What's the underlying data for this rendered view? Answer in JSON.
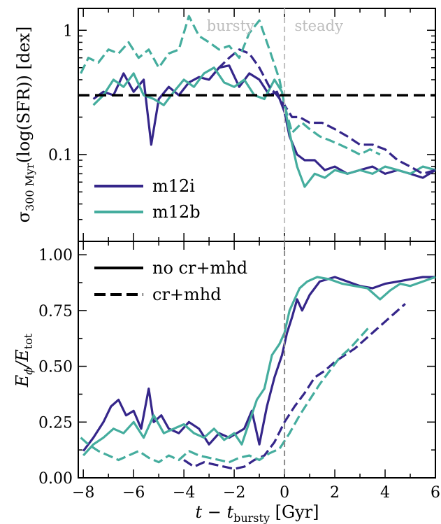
{
  "colors": {
    "m12i": "#35268a",
    "m12b": "#45ad9e",
    "threshold": "#000000",
    "divider_top": "#bfbfbf",
    "divider_bottom": "#8a8a8a"
  },
  "chart_data": [
    {
      "panel": "top",
      "type": "line",
      "ylabel_main": "σ",
      "ylabel_sub": "300 Myr",
      "ylabel_rest": "(log(SFR)) [dex]",
      "yscale": "log",
      "ylim": [
        0.02,
        1.5
      ],
      "xlim": [
        -8.2,
        6.0
      ],
      "yticks": [
        {
          "value": 0.1,
          "label": "0.1"
        },
        {
          "value": 1,
          "label": "1"
        }
      ],
      "annotations": [
        {
          "text": "bursty",
          "x": -1.2,
          "y": 1.1
        },
        {
          "text": "steady",
          "x": 0.4,
          "y": 1.1
        }
      ],
      "hline": 0.3,
      "vline": 0,
      "legend": [
        {
          "label": "m12i",
          "color_key": "m12i"
        },
        {
          "label": "m12b",
          "color_key": "m12b"
        }
      ],
      "series": [
        {
          "name": "m12i",
          "style": "solid",
          "x": [
            -7.6,
            -7.2,
            -6.8,
            -6.4,
            -6.0,
            -5.6,
            -5.3,
            -5.0,
            -4.6,
            -4.2,
            -3.8,
            -3.4,
            -3.0,
            -2.6,
            -2.2,
            -1.8,
            -1.4,
            -1.0,
            -0.6,
            -0.3,
            0.0,
            0.2,
            0.5,
            0.8,
            1.2,
            1.6,
            2.0,
            2.5,
            3.0,
            3.5,
            4.0,
            4.5,
            5.0,
            5.5,
            6.0
          ],
          "y": [
            0.28,
            0.32,
            0.3,
            0.45,
            0.32,
            0.4,
            0.12,
            0.28,
            0.35,
            0.3,
            0.38,
            0.42,
            0.4,
            0.5,
            0.52,
            0.35,
            0.45,
            0.4,
            0.3,
            0.32,
            0.22,
            0.14,
            0.1,
            0.09,
            0.09,
            0.075,
            0.08,
            0.07,
            0.075,
            0.08,
            0.07,
            0.075,
            0.07,
            0.065,
            0.075
          ]
        },
        {
          "name": "m12b",
          "style": "solid",
          "x": [
            -7.6,
            -7.2,
            -6.8,
            -6.4,
            -6.0,
            -5.6,
            -5.2,
            -4.8,
            -4.4,
            -4.0,
            -3.6,
            -3.2,
            -2.8,
            -2.4,
            -2.0,
            -1.6,
            -1.2,
            -0.8,
            -0.4,
            -0.1,
            0.2,
            0.5,
            0.8,
            1.2,
            1.6,
            2.0,
            2.5,
            3.0,
            3.5,
            4.0,
            4.5,
            5.0,
            5.5,
            6.0
          ],
          "y": [
            0.25,
            0.3,
            0.4,
            0.35,
            0.45,
            0.3,
            0.28,
            0.25,
            0.32,
            0.4,
            0.35,
            0.45,
            0.5,
            0.38,
            0.35,
            0.4,
            0.3,
            0.28,
            0.4,
            0.32,
            0.15,
            0.08,
            0.055,
            0.07,
            0.065,
            0.075,
            0.07,
            0.075,
            0.07,
            0.08,
            0.075,
            0.07,
            0.08,
            0.075
          ]
        },
        {
          "name": "m12i",
          "style": "dashed",
          "x": [
            -3.0,
            -2.6,
            -2.2,
            -1.8,
            -1.4,
            -1.0,
            -0.6,
            -0.3,
            0.0,
            0.3,
            0.6,
            1.0,
            1.5,
            2.0,
            2.5,
            3.0,
            3.5,
            4.0,
            4.5,
            5.0,
            5.5,
            6.0
          ],
          "y": [
            0.4,
            0.5,
            0.6,
            0.7,
            0.65,
            0.5,
            0.35,
            0.3,
            0.25,
            0.2,
            0.2,
            0.18,
            0.18,
            0.16,
            0.14,
            0.12,
            0.12,
            0.11,
            0.09,
            0.08,
            0.07,
            0.075
          ]
        },
        {
          "name": "m12b",
          "style": "dashed",
          "x": [
            -8.1,
            -7.8,
            -7.4,
            -7.0,
            -6.6,
            -6.2,
            -5.8,
            -5.4,
            -5.0,
            -4.6,
            -4.2,
            -3.8,
            -3.4,
            -3.0,
            -2.6,
            -2.2,
            -1.8,
            -1.4,
            -1.0,
            -0.6,
            -0.2,
            0.0,
            0.3,
            0.7,
            1.0,
            1.4,
            1.8,
            2.2,
            2.6,
            3.0,
            3.4,
            3.8
          ],
          "y": [
            0.45,
            0.6,
            0.55,
            0.7,
            0.65,
            0.8,
            0.6,
            0.7,
            0.5,
            0.65,
            0.7,
            1.3,
            0.9,
            0.8,
            0.7,
            0.75,
            0.6,
            0.95,
            1.2,
            0.7,
            0.4,
            0.25,
            0.15,
            0.18,
            0.16,
            0.14,
            0.13,
            0.12,
            0.11,
            0.1,
            0.11,
            0.1
          ]
        }
      ]
    },
    {
      "panel": "bottom",
      "type": "line",
      "ylabel_main": "E",
      "ylabel_sub1": "ϕ",
      "ylabel_mid": "/E",
      "ylabel_sub2": "tot",
      "ylim": [
        0,
        1.06
      ],
      "xlim": [
        -8.2,
        6.0
      ],
      "yticks": [
        {
          "value": 0.0,
          "label": "0.00"
        },
        {
          "value": 0.25,
          "label": "0.25"
        },
        {
          "value": 0.5,
          "label": "0.50"
        },
        {
          "value": 0.75,
          "label": "0.75"
        },
        {
          "value": 1.0,
          "label": "1.00"
        }
      ],
      "xticks": [
        {
          "value": -8,
          "label": "−8"
        },
        {
          "value": -6,
          "label": "−6"
        },
        {
          "value": -4,
          "label": "−4"
        },
        {
          "value": -2,
          "label": "−2"
        },
        {
          "value": 0,
          "label": "0"
        },
        {
          "value": 2,
          "label": "2"
        },
        {
          "value": 4,
          "label": "4"
        },
        {
          "value": 6,
          "label": "6"
        }
      ],
      "xlabel_main": "t − t",
      "xlabel_sub": "bursty",
      "xlabel_rest": " [Gyr]",
      "vline": 0,
      "legend": [
        {
          "label": "no cr+mhd",
          "style": "solid"
        },
        {
          "label": "cr+mhd",
          "style": "dashed"
        }
      ],
      "series": [
        {
          "name": "m12i",
          "style": "solid",
          "x": [
            -8.0,
            -7.6,
            -7.2,
            -6.9,
            -6.6,
            -6.3,
            -6.0,
            -5.7,
            -5.4,
            -5.2,
            -4.9,
            -4.6,
            -4.2,
            -3.8,
            -3.4,
            -3.0,
            -2.6,
            -2.2,
            -1.9,
            -1.6,
            -1.3,
            -1.0,
            -0.7,
            -0.4,
            -0.1,
            0.1,
            0.3,
            0.5,
            0.7,
            1.0,
            1.4,
            2.0,
            2.5,
            3.0,
            3.5,
            4.0,
            4.5,
            5.0,
            5.5,
            6.0
          ],
          "y": [
            0.12,
            0.18,
            0.25,
            0.32,
            0.35,
            0.28,
            0.3,
            0.22,
            0.4,
            0.25,
            0.28,
            0.22,
            0.2,
            0.25,
            0.22,
            0.15,
            0.2,
            0.18,
            0.2,
            0.22,
            0.3,
            0.15,
            0.32,
            0.45,
            0.55,
            0.65,
            0.72,
            0.8,
            0.75,
            0.82,
            0.88,
            0.9,
            0.88,
            0.86,
            0.85,
            0.87,
            0.88,
            0.89,
            0.9,
            0.9
          ]
        },
        {
          "name": "m12b",
          "style": "solid",
          "x": [
            -8.0,
            -7.6,
            -7.2,
            -6.8,
            -6.4,
            -6.0,
            -5.6,
            -5.2,
            -4.8,
            -4.4,
            -4.0,
            -3.6,
            -3.2,
            -2.8,
            -2.4,
            -2.0,
            -1.7,
            -1.4,
            -1.1,
            -0.8,
            -0.5,
            -0.2,
            0.0,
            0.2,
            0.4,
            0.6,
            0.9,
            1.3,
            1.8,
            2.3,
            2.8,
            3.3,
            3.8,
            4.2,
            4.6,
            5.0,
            5.5,
            6.0
          ],
          "y": [
            0.1,
            0.15,
            0.18,
            0.22,
            0.2,
            0.25,
            0.18,
            0.28,
            0.2,
            0.22,
            0.24,
            0.2,
            0.18,
            0.22,
            0.17,
            0.2,
            0.15,
            0.25,
            0.35,
            0.4,
            0.55,
            0.6,
            0.65,
            0.75,
            0.8,
            0.85,
            0.88,
            0.9,
            0.89,
            0.87,
            0.86,
            0.85,
            0.8,
            0.84,
            0.87,
            0.86,
            0.88,
            0.9
          ]
        },
        {
          "name": "m12i",
          "style": "dashed",
          "x": [
            -4.0,
            -3.6,
            -3.2,
            -2.8,
            -2.4,
            -2.0,
            -1.6,
            -1.2,
            -0.8,
            -0.4,
            0.0,
            0.4,
            0.8,
            1.2,
            1.6,
            2.0,
            2.4,
            2.8,
            3.2,
            3.6,
            4.0,
            4.4,
            4.8
          ],
          "y": [
            0.08,
            0.05,
            0.07,
            0.06,
            0.05,
            0.04,
            0.05,
            0.08,
            0.1,
            0.16,
            0.25,
            0.32,
            0.38,
            0.45,
            0.48,
            0.52,
            0.55,
            0.58,
            0.62,
            0.66,
            0.7,
            0.74,
            0.78
          ]
        },
        {
          "name": "m12b",
          "style": "dashed",
          "x": [
            -8.1,
            -7.8,
            -7.4,
            -7.0,
            -6.6,
            -6.2,
            -5.8,
            -5.4,
            -5.0,
            -4.6,
            -4.2,
            -3.8,
            -3.4,
            -3.0,
            -2.6,
            -2.2,
            -1.8,
            -1.4,
            -1.0,
            -0.6,
            -0.2,
            0.2,
            0.6,
            1.0,
            1.4,
            1.8,
            2.2,
            2.6,
            3.0,
            3.4
          ],
          "y": [
            0.18,
            0.15,
            0.12,
            0.1,
            0.08,
            0.1,
            0.12,
            0.09,
            0.07,
            0.1,
            0.08,
            0.12,
            0.1,
            0.09,
            0.08,
            0.07,
            0.09,
            0.1,
            0.08,
            0.11,
            0.13,
            0.2,
            0.28,
            0.35,
            0.42,
            0.48,
            0.54,
            0.58,
            0.63,
            0.68
          ]
        }
      ]
    }
  ]
}
